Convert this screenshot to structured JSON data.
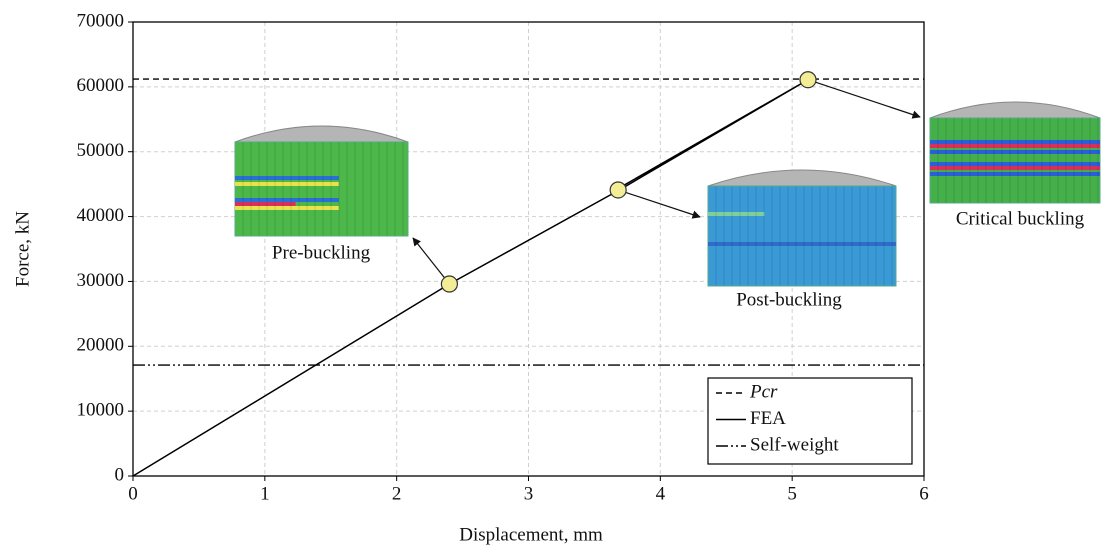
{
  "chart_data": {
    "type": "line",
    "x_label": "Displacement, mm",
    "y_label": "Force, kN",
    "xlim": [
      0,
      6
    ],
    "xticks": [
      0,
      1,
      2,
      3,
      4,
      5,
      6
    ],
    "ylim": [
      0,
      70000
    ],
    "yticks": [
      0,
      10000,
      20000,
      30000,
      40000,
      50000,
      60000,
      70000
    ],
    "grid": true,
    "series": [
      {
        "name": "FEA",
        "color": "#000000",
        "style": "solid",
        "x": [
          0,
          2.4,
          3.68,
          5.12,
          3.73
        ],
        "y": [
          0,
          29600,
          44000,
          61100,
          44900
        ]
      }
    ],
    "hlines": [
      {
        "name": "Pcr",
        "value": 61200,
        "color": "#000000",
        "style": "dashed"
      },
      {
        "name": "Self-weight",
        "value": 17100,
        "color": "#000000",
        "style": "dashdotdot"
      }
    ],
    "legend": {
      "position": "lower right",
      "order": [
        "Pcr",
        "FEA",
        "Self-weight"
      ]
    },
    "annotations": [
      {
        "text": "Pre-buckling",
        "x": 2.4,
        "y": 29600
      },
      {
        "text": "Post-buckling",
        "x": 3.68,
        "y": 44100
      },
      {
        "text": "Critical buckling",
        "x": 5.12,
        "y": 61100
      }
    ],
    "marker_color": "#f3ee96"
  }
}
